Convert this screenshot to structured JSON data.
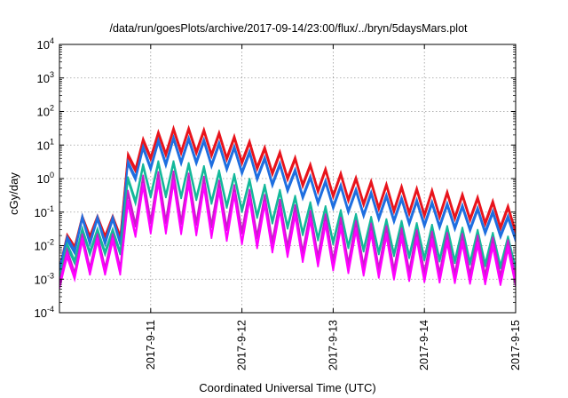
{
  "chart_data": {
    "type": "line",
    "title": "/data/run/goesPlots/archive/2017-09-14/23:00/flux/../bryn/5daysMars.plot",
    "xlabel": "Coordinated Universal Time (UTC)",
    "ylabel": "cGy/day",
    "yscale": "log",
    "ylim": [
      0.0001,
      10000
    ],
    "xlim": [
      "2017-09-10T00:00",
      "2017-09-15T00:00"
    ],
    "grid": true,
    "legend": "none",
    "xticks": [
      {
        "value": "2017-09-11",
        "label": "2017-9-11"
      },
      {
        "value": "2017-09-12",
        "label": "2017-9-12"
      },
      {
        "value": "2017-09-13",
        "label": "2017-9-13"
      },
      {
        "value": "2017-09-14",
        "label": "2017-9-14"
      },
      {
        "value": "2017-09-15",
        "label": "2017-9-15"
      }
    ],
    "yticks": [
      {
        "value": 0.0001,
        "base": "10",
        "exp": "-4"
      },
      {
        "value": 0.001,
        "base": "10",
        "exp": "-3"
      },
      {
        "value": 0.01,
        "base": "10",
        "exp": "-2"
      },
      {
        "value": 0.1,
        "base": "10",
        "exp": "-1"
      },
      {
        "value": 1,
        "base": "10",
        "exp": "0"
      },
      {
        "value": 10,
        "base": "10",
        "exp": "1"
      },
      {
        "value": 100,
        "base": "10",
        "exp": "2"
      },
      {
        "value": 1000,
        "base": "10",
        "exp": "3"
      },
      {
        "value": 10000,
        "base": "10",
        "exp": "4"
      }
    ],
    "x": [
      "2017-09-10T00:00",
      "2017-09-10T06:00",
      "2017-09-10T12:00",
      "2017-09-10T16:00",
      "2017-09-10T17:30",
      "2017-09-10T18:00",
      "2017-09-10T20:00",
      "2017-09-11T00:00",
      "2017-09-11T06:00",
      "2017-09-11T12:00",
      "2017-09-11T18:00",
      "2017-09-12T00:00",
      "2017-09-12T06:00",
      "2017-09-12T12:00",
      "2017-09-12T18:00",
      "2017-09-13T00:00",
      "2017-09-13T06:00",
      "2017-09-13T12:00",
      "2017-09-13T18:00",
      "2017-09-14T00:00",
      "2017-09-14T06:00",
      "2017-09-14T12:00",
      "2017-09-14T18:00",
      "2017-09-15T00:00"
    ],
    "oscillation": {
      "period_hours": 4,
      "note": "each series alternates between a peak and a trough roughly every 4 hours"
    },
    "series": [
      {
        "color": "#e8141c",
        "peak": [
          0.01,
          0.07,
          0.07,
          0.07,
          0.05,
          5,
          10,
          20,
          30,
          30,
          22,
          15,
          8,
          5,
          2.5,
          1.6,
          1,
          0.7,
          0.55,
          0.45,
          0.38,
          0.3,
          0.2,
          0.12
        ],
        "trough": [
          0.002,
          0.018,
          0.018,
          0.018,
          0.012,
          0.7,
          1.8,
          4,
          6,
          6,
          4.5,
          3,
          1.7,
          1,
          0.5,
          0.3,
          0.2,
          0.13,
          0.1,
          0.08,
          0.07,
          0.06,
          0.04,
          0.025
        ]
      },
      {
        "color": "#1f6fe0",
        "peak": [
          0.008,
          0.07,
          0.065,
          0.065,
          0.05,
          3,
          6,
          12,
          16,
          15,
          11,
          7.5,
          4,
          2.2,
          1.1,
          0.7,
          0.45,
          0.33,
          0.25,
          0.2,
          0.17,
          0.14,
          0.1,
          0.06
        ],
        "trough": [
          0.002,
          0.012,
          0.012,
          0.012,
          0.01,
          0.4,
          1,
          2,
          3,
          3,
          2.2,
          1.5,
          0.8,
          0.45,
          0.22,
          0.14,
          0.09,
          0.065,
          0.05,
          0.04,
          0.035,
          0.03,
          0.022,
          0.015
        ]
      },
      {
        "color": "#14b89a",
        "peak": [
          0.006,
          0.03,
          0.028,
          0.028,
          0.02,
          1,
          2,
          3,
          3,
          2.5,
          1.6,
          1.1,
          0.6,
          0.35,
          0.18,
          0.12,
          0.08,
          0.06,
          0.05,
          0.04,
          0.035,
          0.03,
          0.022,
          0.015
        ],
        "trough": [
          0.001,
          0.006,
          0.006,
          0.006,
          0.005,
          0.1,
          0.2,
          0.3,
          0.3,
          0.25,
          0.17,
          0.11,
          0.06,
          0.035,
          0.018,
          0.012,
          0.008,
          0.006,
          0.005,
          0.004,
          0.0035,
          0.003,
          0.0025,
          0.002
        ]
      },
      {
        "color": "#c81ec8",
        "peak": [
          0.004,
          0.02,
          0.02,
          0.02,
          0.015,
          0.4,
          0.9,
          1.4,
          1.5,
          1.2,
          0.8,
          0.5,
          0.3,
          0.18,
          0.1,
          0.07,
          0.05,
          0.038,
          0.03,
          0.025,
          0.022,
          0.02,
          0.016,
          0.012
        ],
        "trough": [
          0.0007,
          0.002,
          0.002,
          0.002,
          0.0018,
          0.02,
          0.04,
          0.05,
          0.05,
          0.045,
          0.035,
          0.025,
          0.015,
          0.009,
          0.005,
          0.0035,
          0.0025,
          0.002,
          0.0017,
          0.0015,
          0.0014,
          0.0013,
          0.0012,
          0.0011
        ]
      },
      {
        "color": "#ff00ff",
        "peak": [
          0.003,
          0.015,
          0.015,
          0.015,
          0.012,
          0.2,
          0.5,
          0.8,
          0.8,
          0.7,
          0.45,
          0.3,
          0.18,
          0.1,
          0.06,
          0.04,
          0.03,
          0.022,
          0.018,
          0.015,
          0.013,
          0.012,
          0.01,
          0.008
        ],
        "trough": [
          0.0006,
          0.0015,
          0.0015,
          0.0015,
          0.0012,
          0.01,
          0.02,
          0.025,
          0.025,
          0.022,
          0.017,
          0.012,
          0.008,
          0.005,
          0.003,
          0.002,
          0.0015,
          0.0012,
          0.001,
          0.0009,
          0.00085,
          0.0008,
          0.00075,
          0.0007
        ]
      }
    ]
  }
}
